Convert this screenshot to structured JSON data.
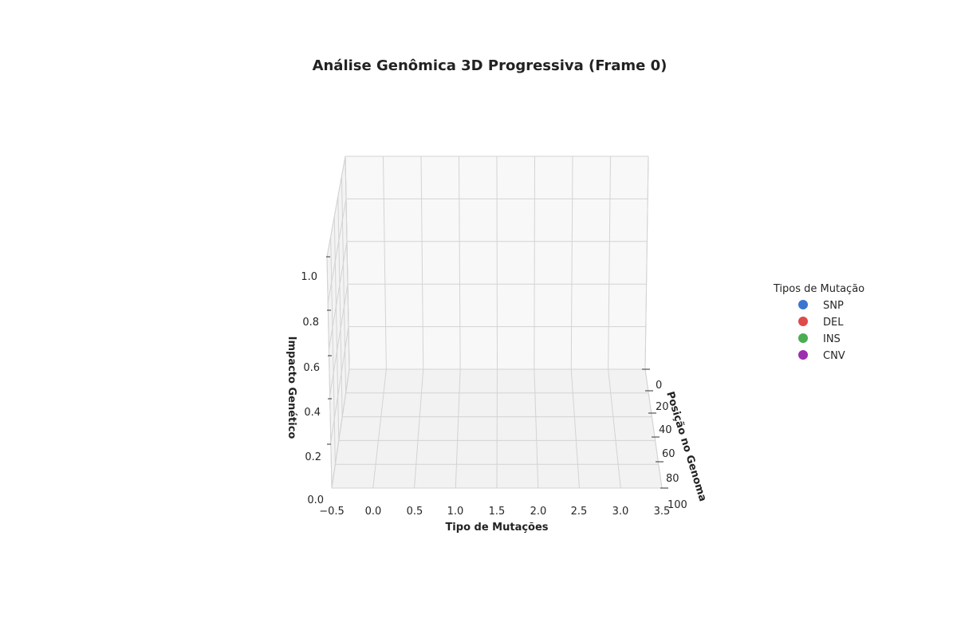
{
  "chart_data": {
    "type": "scatter",
    "projection": "3d",
    "title": "Análise Genômica 3D Progressiva (Frame 0)",
    "xlabel": "Tipo de Mutações",
    "ylabel": "Posição no Genoma",
    "zlabel": "Impacto Genético",
    "xlim": [
      -0.5,
      3.5
    ],
    "ylim": [
      0,
      100
    ],
    "zlim": [
      0.0,
      1.0
    ],
    "xticks": [
      "−0.5",
      "0.0",
      "0.5",
      "1.0",
      "1.5",
      "2.0",
      "2.5",
      "3.0",
      "3.5"
    ],
    "yticks": [
      "0",
      "20",
      "40",
      "60",
      "80",
      "100"
    ],
    "zticks": [
      "0.0",
      "0.2",
      "0.4",
      "0.6",
      "0.8",
      "1.0"
    ],
    "grid": true,
    "legend": {
      "title": "Tipos de Mutação",
      "placement": "right",
      "entries": [
        {
          "label": "SNP",
          "color": "#3a75d0"
        },
        {
          "label": "DEL",
          "color": "#df4a4a"
        },
        {
          "label": "INS",
          "color": "#4aad52"
        },
        {
          "label": "CNV",
          "color": "#9b2fae"
        }
      ]
    },
    "series": [
      {
        "name": "SNP",
        "points": []
      },
      {
        "name": "DEL",
        "points": []
      },
      {
        "name": "INS",
        "points": []
      },
      {
        "name": "CNV",
        "points": []
      }
    ]
  }
}
